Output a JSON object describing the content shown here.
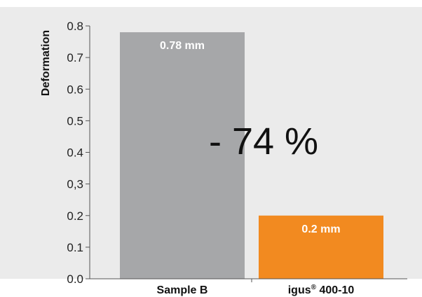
{
  "colors": {
    "background": "#ebebeb",
    "axis": "#555555",
    "bars": [
      "#a6a7a9",
      "#f28a20"
    ]
  },
  "chart_data": {
    "type": "bar",
    "ylabel": "Deformation",
    "ylim": [
      0,
      0.8
    ],
    "yticks": [
      0,
      0.1,
      0.2,
      0.3,
      0.4,
      0.5,
      0.6,
      0.7,
      0.8
    ],
    "ytick_labels": [
      "0.0",
      "0.1",
      "0.2",
      "0,3",
      "0.4",
      "0.5",
      "0.6",
      "0.7",
      "0.8"
    ],
    "categories": [
      "Sample B",
      "igus 400-10"
    ],
    "category_parts": [
      {
        "main": "Sample B",
        "sup": "",
        "rest": ""
      },
      {
        "main": "igus",
        "sup": "®",
        "rest": " 400-10"
      }
    ],
    "values": [
      0.78,
      0.2
    ],
    "data_labels": [
      "0.78 mm",
      "0.2 mm"
    ],
    "annotation": "- 74 %",
    "grid": false
  }
}
